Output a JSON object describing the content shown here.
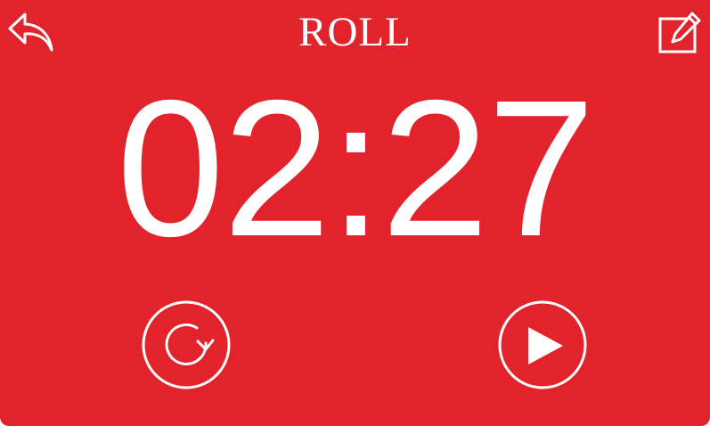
{
  "header": {
    "title": "ROLL",
    "back_icon": "undo-arrow-icon",
    "edit_icon": "edit-pencil-icon"
  },
  "timer": {
    "display": "02:27"
  },
  "controls": {
    "reset_icon": "reset-cycle-icon",
    "play_icon": "play-icon"
  },
  "colors": {
    "background": "#e3232c",
    "foreground": "#ffffff"
  }
}
